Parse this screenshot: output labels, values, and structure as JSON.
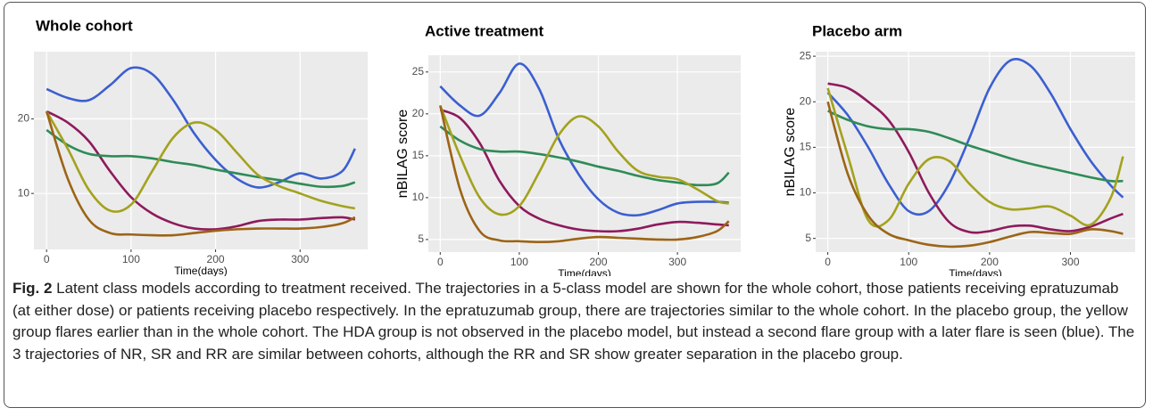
{
  "chart_data": [
    {
      "type": "line",
      "title": "Whole cohort",
      "xlabel": "Time(days)",
      "x": [
        0,
        25,
        50,
        75,
        100,
        125,
        150,
        175,
        200,
        225,
        250,
        275,
        300,
        325,
        350,
        365
      ],
      "xlim": [
        -15,
        380
      ],
      "xticks": [
        0,
        100,
        200,
        300
      ],
      "ylim": [
        2.5,
        29
      ],
      "yticks": [
        10,
        20
      ],
      "grid": true,
      "series": [
        {
          "color": "#3b5fd0",
          "values": [
            24,
            22.8,
            22.5,
            24.5,
            26.8,
            26,
            22.5,
            18,
            14.5,
            12,
            10.8,
            11.5,
            12.7,
            12,
            13,
            16
          ]
        },
        {
          "color": "#8e1a5c",
          "values": [
            21,
            19.5,
            17,
            13,
            9.5,
            7.3,
            6,
            5.3,
            5.2,
            5.6,
            6.3,
            6.5,
            6.5,
            6.7,
            6.8,
            6.5
          ]
        },
        {
          "color": "#2e8b57",
          "values": [
            18.5,
            16.5,
            15.3,
            15,
            15,
            14.7,
            14.2,
            13.8,
            13.2,
            12.7,
            12.2,
            11.8,
            11.3,
            10.9,
            11,
            11.5
          ]
        },
        {
          "color": "#a3a21e",
          "values": [
            21,
            16,
            10.5,
            7.7,
            8.5,
            13,
            17.5,
            19.5,
            18.5,
            15.5,
            12.5,
            11,
            10,
            9,
            8.3,
            8
          ]
        },
        {
          "color": "#9c6416",
          "values": [
            21,
            12,
            6.5,
            4.7,
            4.5,
            4.4,
            4.4,
            4.7,
            5,
            5.2,
            5.3,
            5.3,
            5.3,
            5.5,
            6,
            6.8
          ]
        }
      ]
    },
    {
      "type": "line",
      "title": "Active treatment",
      "xlabel": "Time(days)",
      "ylabel": "nBILAG score",
      "x": [
        0,
        25,
        50,
        75,
        100,
        125,
        150,
        175,
        200,
        225,
        250,
        275,
        300,
        325,
        350,
        365
      ],
      "xlim": [
        -15,
        380
      ],
      "xticks": [
        0,
        100,
        200,
        300
      ],
      "ylim": [
        3.5,
        27
      ],
      "yticks": [
        5,
        10,
        15,
        20,
        25
      ],
      "grid": true,
      "series": [
        {
          "color": "#3b5fd0",
          "values": [
            23.3,
            21,
            19.8,
            22.5,
            26,
            23,
            17,
            12.8,
            9.8,
            8.2,
            7.9,
            8.5,
            9.3,
            9.5,
            9.5,
            9.4
          ]
        },
        {
          "color": "#8e1a5c",
          "values": [
            20.5,
            19.5,
            16.5,
            12,
            9,
            7.5,
            6.7,
            6.2,
            6,
            6,
            6.3,
            6.8,
            7.1,
            7,
            6.8,
            6.7
          ]
        },
        {
          "color": "#2e8b57",
          "values": [
            18.5,
            16.8,
            15.8,
            15.5,
            15.5,
            15.2,
            14.8,
            14.3,
            13.7,
            13.2,
            12.6,
            12.1,
            11.8,
            11.5,
            11.7,
            13
          ]
        },
        {
          "color": "#a3a21e",
          "values": [
            21,
            15,
            10,
            8,
            9,
            13,
            17.5,
            19.7,
            18.5,
            15.5,
            13.2,
            12.5,
            12.2,
            11,
            9.6,
            9.3
          ]
        },
        {
          "color": "#9c6416",
          "values": [
            21,
            11,
            6,
            4.9,
            4.8,
            4.7,
            4.8,
            5.1,
            5.3,
            5.2,
            5.1,
            5,
            5,
            5.3,
            6,
            7.2
          ]
        }
      ]
    },
    {
      "type": "line",
      "title": "Placebo arm",
      "xlabel": "Time(days)",
      "ylabel": "nBILAG score",
      "x": [
        0,
        25,
        50,
        75,
        100,
        125,
        150,
        175,
        200,
        225,
        250,
        275,
        300,
        325,
        350,
        365
      ],
      "xlim": [
        -15,
        380
      ],
      "xticks": [
        0,
        100,
        200,
        300
      ],
      "ylim": [
        3.5,
        25.5
      ],
      "yticks": [
        5,
        10,
        15,
        20,
        25
      ],
      "grid": true,
      "series": [
        {
          "color": "#3b5fd0",
          "values": [
            21,
            18.5,
            15,
            11,
            8,
            8,
            11,
            16,
            21.5,
            24.5,
            24,
            21,
            17,
            13.5,
            10.8,
            9.5
          ]
        },
        {
          "color": "#8e1a5c",
          "values": [
            22,
            21.5,
            20,
            18,
            14.5,
            10,
            6.8,
            5.7,
            5.8,
            6.3,
            6.4,
            6,
            5.8,
            6.3,
            7.2,
            7.7
          ]
        },
        {
          "color": "#2e8b57",
          "values": [
            19,
            18,
            17.3,
            17,
            17,
            16.7,
            16,
            15.2,
            14.5,
            13.8,
            13.2,
            12.7,
            12.2,
            11.7,
            11.3,
            11.3
          ]
        },
        {
          "color": "#a3a21e",
          "values": [
            21.5,
            14,
            7,
            7,
            11,
            13.7,
            13.5,
            11,
            9,
            8.2,
            8.3,
            8.5,
            7.5,
            6.5,
            9.5,
            14
          ]
        },
        {
          "color": "#9c6416",
          "values": [
            20,
            12,
            7.5,
            5.5,
            4.8,
            4.3,
            4.1,
            4.2,
            4.6,
            5.2,
            5.7,
            5.6,
            5.5,
            6,
            5.8,
            5.5
          ]
        }
      ]
    }
  ],
  "caption": {
    "label": "Fig. 2",
    "text": "Latent class models according to treatment received. The trajectories in a 5-class model are shown for the whole cohort, those patients receiving epratuzumab (at either dose) or patients receiving placebo respectively. In the epratuzumab group, there are trajectories similar to the whole cohort. In the placebo group, the yellow group flares earlier than in the whole cohort. The HDA group is not observed in the placebo model, but instead a second flare group with a later flare is seen (blue). The 3 trajectories of NR, SR and RR are similar between cohorts, although the RR and SR show greater separation in the placebo group."
  }
}
